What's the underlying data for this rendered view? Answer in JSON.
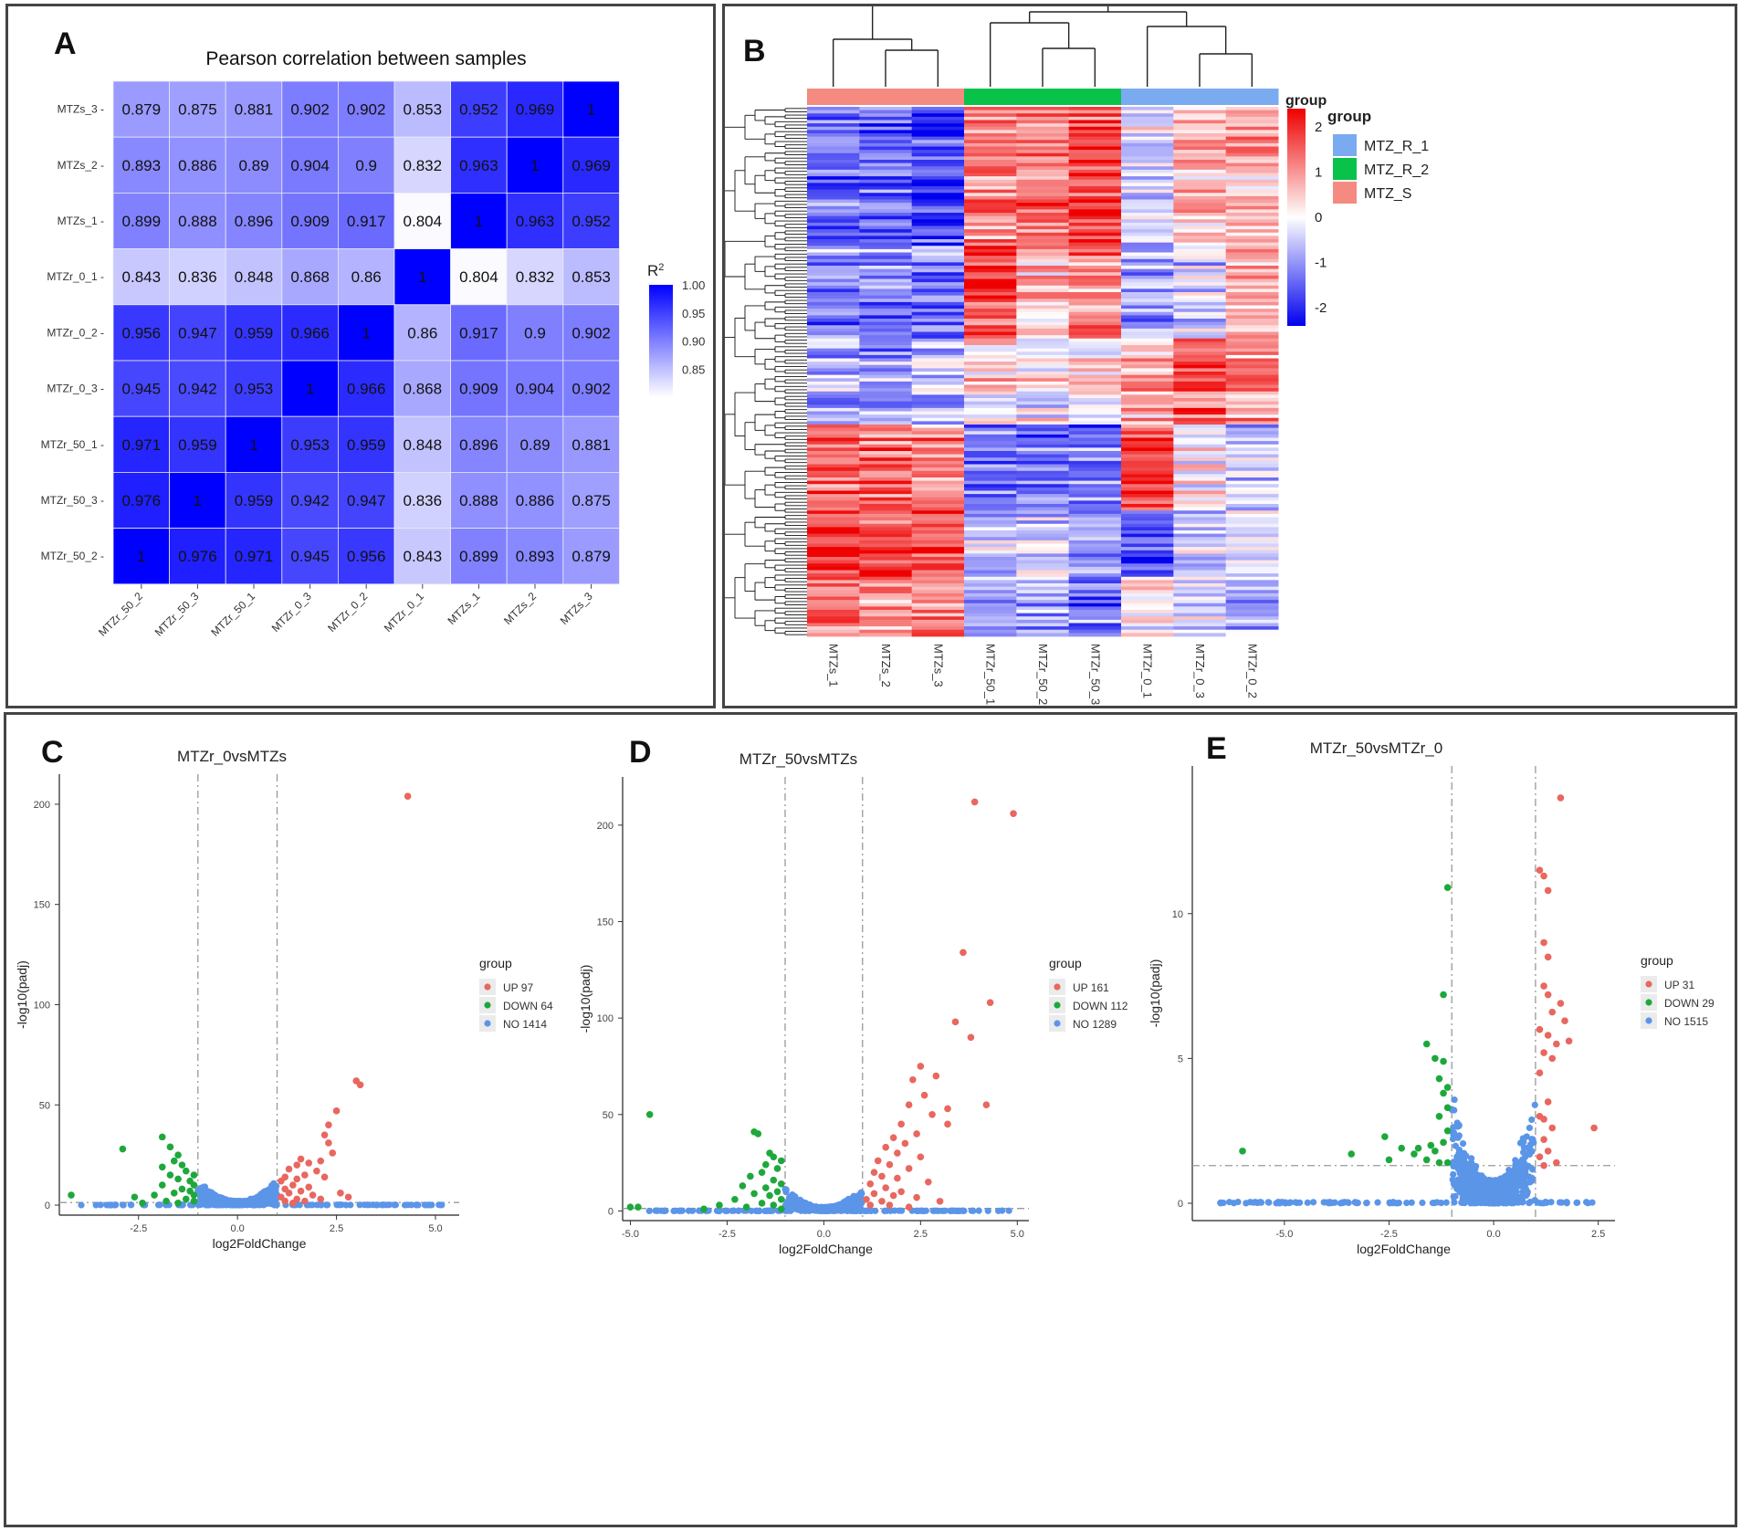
{
  "colors": {
    "heat_low": "#ffffff",
    "heat_high": "#0000ff",
    "z_low": "#0000ee",
    "z_mid": "#ffffff",
    "z_high": "#ee0000",
    "grp_r1": "#7aabf0",
    "grp_r2": "#08c24a",
    "grp_s": "#f58a80",
    "up": "#e8675f",
    "down": "#1ea83c",
    "no": "#5b95e8"
  },
  "chart_data": [
    {
      "panel": "A",
      "type": "heatmap",
      "title": "Pearson correlation between samples",
      "rows": [
        "MTZs_3",
        "MTZs_2",
        "MTZs_1",
        "MTZr_0_1",
        "MTZr_0_2",
        "MTZr_0_3",
        "MTZr_50_1",
        "MTZr_50_3",
        "MTZr_50_2"
      ],
      "cols": [
        "MTZr_50_2",
        "MTZr_50_3",
        "MTZr_50_1",
        "MTZr_0_3",
        "MTZr_0_2",
        "MTZr_0_1",
        "MTZs_1",
        "MTZs_2",
        "MTZs_3"
      ],
      "values": [
        [
          "0.879",
          "0.875",
          "0.881",
          "0.902",
          "0.902",
          "0.853",
          "0.952",
          "0.969",
          "1"
        ],
        [
          "0.893",
          "0.886",
          "0.89",
          "0.904",
          "0.9",
          "0.832",
          "0.963",
          "1",
          "0.969"
        ],
        [
          "0.899",
          "0.888",
          "0.896",
          "0.909",
          "0.917",
          "0.804",
          "1",
          "0.963",
          "0.952"
        ],
        [
          "0.843",
          "0.836",
          "0.848",
          "0.868",
          "0.86",
          "1",
          "0.804",
          "0.832",
          "0.853"
        ],
        [
          "0.956",
          "0.947",
          "0.959",
          "0.966",
          "1",
          "0.86",
          "0.917",
          "0.9",
          "0.902"
        ],
        [
          "0.945",
          "0.942",
          "0.953",
          "1",
          "0.966",
          "0.868",
          "0.909",
          "0.904",
          "0.902"
        ],
        [
          "0.971",
          "0.959",
          "1",
          "0.953",
          "0.959",
          "0.848",
          "0.896",
          "0.89",
          "0.881"
        ],
        [
          "0.976",
          "1",
          "0.959",
          "0.942",
          "0.947",
          "0.836",
          "0.888",
          "0.886",
          "0.875"
        ],
        [
          "1",
          "0.976",
          "0.971",
          "0.945",
          "0.956",
          "0.843",
          "0.899",
          "0.893",
          "0.879"
        ]
      ],
      "legend": {
        "title": "R",
        "title_sup": "2",
        "ticks": [
          "1.00",
          "0.95",
          "0.90",
          "0.85"
        ],
        "range": [
          0.8,
          1.0
        ]
      }
    },
    {
      "panel": "B",
      "type": "heatmap",
      "columns": [
        "MTZs_1",
        "MTZs_2",
        "MTZs_3",
        "MTZr_50_1",
        "MTZr_50_2",
        "MTZr_50_3",
        "MTZr_0_1",
        "MTZr_0_3",
        "MTZr_0_2"
      ],
      "column_groups": [
        "MTZ_S",
        "MTZ_S",
        "MTZ_S",
        "MTZ_R_2",
        "MTZ_R_2",
        "MTZ_R_2",
        "MTZ_R_1",
        "MTZ_R_1",
        "MTZ_R_1"
      ],
      "annotation_title": "group",
      "legend_title": "group",
      "legend_items": [
        "MTZ_R_1",
        "MTZ_R_2",
        "MTZ_S"
      ],
      "scale_ticks": [
        "2",
        "1",
        "0",
        "-1",
        "-2"
      ],
      "row_count": 160,
      "blocks": [
        {
          "rows": [
            0,
            42
          ],
          "means": [
            -1.2,
            -1.3,
            -1.6,
            1.1,
            1.2,
            1.6,
            -0.2,
            0.5,
            0.7
          ]
        },
        {
          "rows": [
            42,
            70
          ],
          "means": [
            -1.0,
            -1.1,
            -1.2,
            1.6,
            0.6,
            0.9,
            -0.9,
            -0.4,
            0.6
          ]
        },
        {
          "rows": [
            70,
            96
          ],
          "means": [
            -0.6,
            -0.7,
            -0.6,
            0.3,
            0.0,
            0.3,
            0.6,
            1.4,
            0.9
          ]
        },
        {
          "rows": [
            96,
            122
          ],
          "means": [
            1.3,
            1.2,
            1.1,
            -1.0,
            -1.1,
            -1.2,
            1.7,
            0.1,
            -0.4
          ]
        },
        {
          "rows": [
            122,
            142
          ],
          "means": [
            1.6,
            1.7,
            1.5,
            -0.6,
            -0.4,
            -0.9,
            -1.5,
            -0.6,
            -0.3
          ]
        },
        {
          "rows": [
            142,
            160
          ],
          "means": [
            1.2,
            1.1,
            1.0,
            -0.8,
            -0.7,
            -1.1,
            0.2,
            -0.3,
            -0.6
          ]
        }
      ]
    },
    {
      "panel": "C",
      "type": "scatter",
      "title": "MTZr_0vsMTZs",
      "xlabel": "log2FoldChange",
      "ylabel": "-log10(padj)",
      "xlim": [
        -4.5,
        5.6
      ],
      "ylim": [
        -5,
        215
      ],
      "xticks": [
        "-2.5",
        "0.0",
        "2.5",
        "5.0"
      ],
      "xtick_values": [
        -2.5,
        0,
        2.5,
        5
      ],
      "yticks": [
        "0",
        "50",
        "100",
        "150",
        "200"
      ],
      "ytick_values": [
        0,
        50,
        100,
        150,
        200
      ],
      "vlines": [
        -1,
        1
      ],
      "hline": 1.3,
      "legend_title": "group",
      "legend": [
        {
          "label": "UP 97",
          "color": "up"
        },
        {
          "label": "DOWN 64",
          "color": "down"
        },
        {
          "label": "NO 1414",
          "color": "no"
        }
      ],
      "up_points": [
        [
          4.3,
          204
        ],
        [
          3.0,
          62
        ],
        [
          3.1,
          60
        ],
        [
          2.5,
          47
        ],
        [
          2.3,
          40
        ],
        [
          2.2,
          35
        ],
        [
          2.3,
          31
        ],
        [
          2.4,
          26
        ],
        [
          2.1,
          22
        ],
        [
          1.6,
          23
        ],
        [
          1.8,
          21
        ],
        [
          1.5,
          20
        ],
        [
          2.0,
          17
        ],
        [
          1.3,
          18
        ],
        [
          1.7,
          15
        ],
        [
          1.2,
          14
        ],
        [
          1.5,
          13
        ],
        [
          2.2,
          14
        ],
        [
          1.1,
          12
        ],
        [
          1.4,
          10
        ],
        [
          1.8,
          9
        ],
        [
          1.2,
          8
        ],
        [
          1.6,
          7
        ],
        [
          2.6,
          6
        ],
        [
          1.3,
          6
        ],
        [
          1.9,
          5
        ],
        [
          1.1,
          4
        ],
        [
          1.5,
          3
        ],
        [
          2.8,
          4
        ],
        [
          1.2,
          2
        ],
        [
          1.7,
          2
        ],
        [
          2.1,
          3
        ],
        [
          1.4,
          1
        ]
      ],
      "down_points": [
        [
          -4.2,
          5
        ],
        [
          -2.9,
          28
        ],
        [
          -2.6,
          4
        ],
        [
          -1.9,
          34
        ],
        [
          -1.7,
          29
        ],
        [
          -1.5,
          25
        ],
        [
          -1.6,
          22
        ],
        [
          -1.9,
          19
        ],
        [
          -1.4,
          20
        ],
        [
          -1.3,
          17
        ],
        [
          -1.1,
          15
        ],
        [
          -1.7,
          15
        ],
        [
          -1.5,
          13
        ],
        [
          -1.2,
          12
        ],
        [
          -1.1,
          10
        ],
        [
          -1.9,
          10
        ],
        [
          -1.4,
          8
        ],
        [
          -1.2,
          7
        ],
        [
          -1.6,
          6
        ],
        [
          -2.1,
          5
        ],
        [
          -1.1,
          5
        ],
        [
          -1.3,
          3
        ],
        [
          -1.8,
          2
        ],
        [
          -2.4,
          1
        ],
        [
          -1.5,
          1
        ],
        [
          -1.1,
          2
        ]
      ]
    },
    {
      "panel": "D",
      "type": "scatter",
      "title": "MTZr_50vsMTZs",
      "xlabel": "log2FoldChange",
      "ylabel": "-log10(padj)",
      "xlim": [
        -5.2,
        5.3
      ],
      "ylim": [
        -5,
        225
      ],
      "xticks": [
        "-5.0",
        "-2.5",
        "0.0",
        "2.5",
        "5.0"
      ],
      "xtick_values": [
        -5,
        -2.5,
        0,
        2.5,
        5
      ],
      "yticks": [
        "0",
        "50",
        "100",
        "150",
        "200"
      ],
      "ytick_values": [
        0,
        50,
        100,
        150,
        200
      ],
      "vlines": [
        -1,
        1
      ],
      "hline": 1.3,
      "legend_title": "group",
      "legend": [
        {
          "label": "UP 161",
          "color": "up"
        },
        {
          "label": "DOWN 112",
          "color": "down"
        },
        {
          "label": "NO 1289",
          "color": "no"
        }
      ],
      "up_points": [
        [
          3.9,
          212
        ],
        [
          4.9,
          206
        ],
        [
          3.6,
          134
        ],
        [
          4.3,
          108
        ],
        [
          3.4,
          98
        ],
        [
          3.8,
          90
        ],
        [
          2.9,
          70
        ],
        [
          2.5,
          75
        ],
        [
          2.3,
          68
        ],
        [
          2.6,
          60
        ],
        [
          2.2,
          55
        ],
        [
          3.2,
          53
        ],
        [
          4.2,
          55
        ],
        [
          3.2,
          45
        ],
        [
          2.8,
          50
        ],
        [
          2.0,
          45
        ],
        [
          2.4,
          40
        ],
        [
          1.8,
          38
        ],
        [
          2.1,
          35
        ],
        [
          1.6,
          33
        ],
        [
          1.9,
          30
        ],
        [
          2.5,
          28
        ],
        [
          1.4,
          26
        ],
        [
          1.7,
          24
        ],
        [
          2.2,
          22
        ],
        [
          1.3,
          20
        ],
        [
          1.5,
          18
        ],
        [
          1.9,
          17
        ],
        [
          2.7,
          15
        ],
        [
          1.2,
          14
        ],
        [
          1.6,
          12
        ],
        [
          2.0,
          10
        ],
        [
          1.3,
          9
        ],
        [
          1.8,
          8
        ],
        [
          2.4,
          7
        ],
        [
          1.1,
          6
        ],
        [
          1.5,
          5
        ],
        [
          3.0,
          5
        ],
        [
          1.2,
          3
        ],
        [
          1.7,
          3
        ],
        [
          2.2,
          2
        ]
      ],
      "down_points": [
        [
          -4.5,
          50
        ],
        [
          -5.0,
          2
        ],
        [
          -4.8,
          2
        ],
        [
          -1.8,
          41
        ],
        [
          -1.7,
          40
        ],
        [
          -1.4,
          30
        ],
        [
          -1.3,
          28
        ],
        [
          -1.1,
          26
        ],
        [
          -1.5,
          24
        ],
        [
          -1.2,
          22
        ],
        [
          -1.6,
          20
        ],
        [
          -1.9,
          18
        ],
        [
          -1.3,
          16
        ],
        [
          -1.1,
          14
        ],
        [
          -2.1,
          13
        ],
        [
          -1.5,
          12
        ],
        [
          -1.2,
          10
        ],
        [
          -1.8,
          9
        ],
        [
          -1.4,
          8
        ],
        [
          -2.3,
          6
        ],
        [
          -1.1,
          6
        ],
        [
          -1.6,
          4
        ],
        [
          -2.7,
          3
        ],
        [
          -1.3,
          3
        ],
        [
          -2.0,
          2
        ],
        [
          -3.1,
          1
        ],
        [
          -1.1,
          1
        ]
      ]
    },
    {
      "panel": "E",
      "type": "scatter",
      "title": "MTZr_50vsMTZr_0",
      "xlabel": "log2FoldChange",
      "ylabel": "-log10(padj)",
      "xlim": [
        -7.2,
        2.9
      ],
      "ylim": [
        -0.6,
        15.1
      ],
      "xticks": [
        "-5.0",
        "-2.5",
        "0.0",
        "2.5"
      ],
      "xtick_values": [
        -5,
        -2.5,
        0,
        2.5
      ],
      "yticks": [
        "0",
        "5",
        "10"
      ],
      "ytick_values": [
        0,
        5,
        10
      ],
      "vlines": [
        -1,
        1
      ],
      "hline": 1.3,
      "legend_title": "group",
      "legend": [
        {
          "label": "UP 31",
          "color": "up"
        },
        {
          "label": "DOWN 29",
          "color": "down"
        },
        {
          "label": "NO 1515",
          "color": "no"
        }
      ],
      "up_points": [
        [
          1.6,
          14.0
        ],
        [
          1.1,
          11.5
        ],
        [
          1.2,
          11.3
        ],
        [
          1.3,
          10.8
        ],
        [
          1.2,
          9.0
        ],
        [
          1.3,
          8.5
        ],
        [
          1.2,
          7.5
        ],
        [
          1.3,
          7.2
        ],
        [
          1.6,
          6.9
        ],
        [
          1.4,
          6.6
        ],
        [
          1.7,
          6.3
        ],
        [
          1.1,
          6.0
        ],
        [
          1.3,
          5.8
        ],
        [
          1.5,
          5.5
        ],
        [
          1.8,
          5.6
        ],
        [
          1.2,
          5.2
        ],
        [
          1.4,
          5.0
        ],
        [
          1.1,
          4.5
        ],
        [
          1.3,
          3.5
        ],
        [
          1.1,
          3.0
        ],
        [
          1.2,
          2.9
        ],
        [
          1.4,
          2.6
        ],
        [
          2.4,
          2.6
        ],
        [
          1.2,
          2.2
        ],
        [
          1.3,
          1.8
        ],
        [
          1.1,
          1.6
        ],
        [
          1.5,
          1.4
        ],
        [
          1.2,
          1.3
        ]
      ],
      "down_points": [
        [
          -1.1,
          10.9
        ],
        [
          -1.2,
          7.2
        ],
        [
          -1.6,
          5.5
        ],
        [
          -1.4,
          5.0
        ],
        [
          -1.2,
          4.9
        ],
        [
          -1.3,
          4.3
        ],
        [
          -1.1,
          4.0
        ],
        [
          -1.2,
          3.8
        ],
        [
          -1.1,
          3.3
        ],
        [
          -1.3,
          3.0
        ],
        [
          -1.1,
          2.5
        ],
        [
          -1.2,
          2.1
        ],
        [
          -1.5,
          2.0
        ],
        [
          -1.8,
          1.9
        ],
        [
          -2.6,
          2.3
        ],
        [
          -3.4,
          1.7
        ],
        [
          -2.2,
          1.9
        ],
        [
          -1.4,
          1.8
        ],
        [
          -1.6,
          1.5
        ],
        [
          -2.5,
          1.5
        ],
        [
          -6.0,
          1.8
        ],
        [
          -1.9,
          1.7
        ],
        [
          -1.1,
          1.4
        ],
        [
          -1.3,
          1.4
        ]
      ]
    }
  ]
}
